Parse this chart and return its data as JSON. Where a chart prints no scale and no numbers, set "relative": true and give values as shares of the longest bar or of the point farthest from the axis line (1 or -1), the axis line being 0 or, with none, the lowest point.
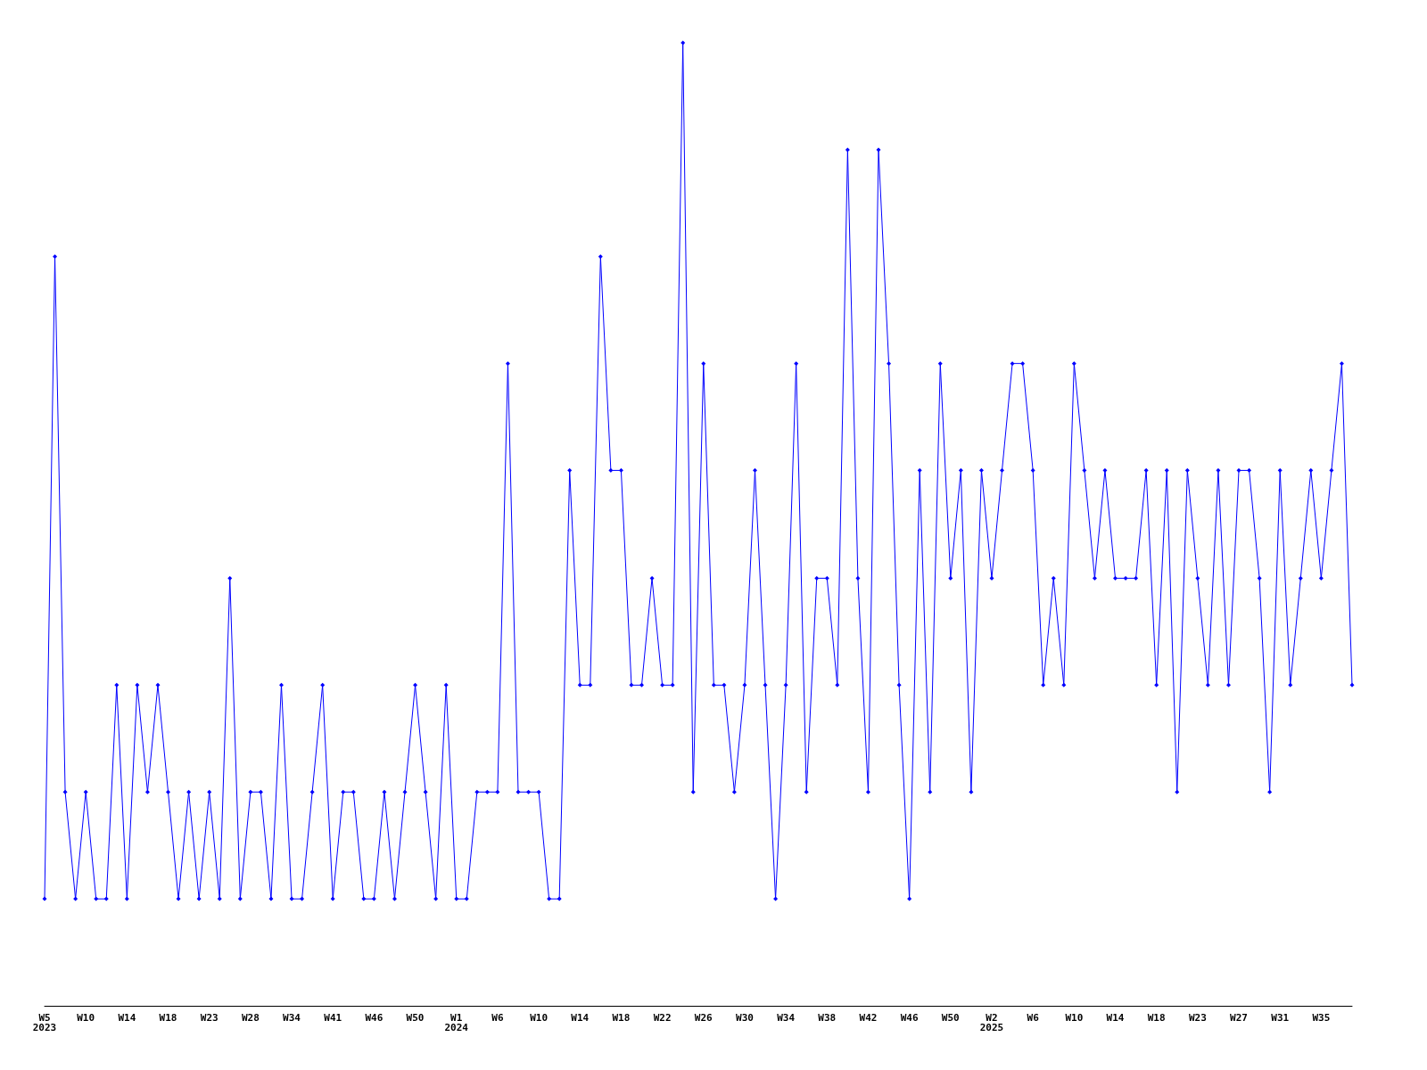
{
  "chart_data": {
    "type": "line",
    "relative": true,
    "marker": "diamond",
    "line_style": "solid",
    "grid": false,
    "categories": [
      "W5\n2023",
      null,
      null,
      null,
      "W10",
      null,
      null,
      null,
      "W14",
      null,
      null,
      null,
      "W18",
      null,
      null,
      null,
      "W23",
      null,
      null,
      null,
      "W28",
      null,
      null,
      null,
      "W34",
      null,
      null,
      null,
      "W41",
      null,
      null,
      null,
      "W46",
      null,
      null,
      null,
      "W50",
      null,
      null,
      null,
      "W1\n2024",
      null,
      null,
      null,
      "W6",
      null,
      null,
      null,
      "W10",
      null,
      null,
      null,
      "W14",
      null,
      null,
      null,
      "W18",
      null,
      null,
      null,
      "W22",
      null,
      null,
      null,
      "W26",
      null,
      null,
      null,
      "W30",
      null,
      null,
      null,
      "W34",
      null,
      null,
      null,
      "W38",
      null,
      null,
      null,
      "W42",
      null,
      null,
      null,
      "W46",
      null,
      null,
      null,
      "W50",
      null,
      null,
      null,
      "W2\n2025",
      null,
      null,
      null,
      "W6",
      null,
      null,
      null,
      "W10",
      null,
      null,
      null,
      "W14",
      null,
      null,
      null,
      "W18",
      null,
      null,
      null,
      "W23",
      null,
      null,
      null,
      "W27",
      null,
      null,
      null,
      "W31",
      null,
      null,
      null,
      "W35",
      null,
      null,
      null
    ],
    "series": [
      {
        "color": "#0000ff",
        "values": [
          0.111,
          0.778,
          0.222,
          0.111,
          0.222,
          0.111,
          0.111,
          0.333,
          0.111,
          0.333,
          0.222,
          0.333,
          0.222,
          0.111,
          0.222,
          0.111,
          0.222,
          0.111,
          0.444,
          0.111,
          0.222,
          0.222,
          0.111,
          0.333,
          0.111,
          0.111,
          0.222,
          0.333,
          0.111,
          0.222,
          0.222,
          0.111,
          0.111,
          0.222,
          0.111,
          0.222,
          0.333,
          0.222,
          0.111,
          0.333,
          0.111,
          0.111,
          0.222,
          0.222,
          0.222,
          0.667,
          0.222,
          0.222,
          0.222,
          0.111,
          0.111,
          0.556,
          0.333,
          0.333,
          0.778,
          0.556,
          0.556,
          0.333,
          0.333,
          0.444,
          0.333,
          0.333,
          1,
          0.222,
          0.667,
          0.333,
          0.333,
          0.222,
          0.333,
          0.556,
          0.333,
          0.111,
          0.333,
          0.667,
          0.222,
          0.444,
          0.444,
          0.333,
          0.889,
          0.444,
          0.222,
          0.889,
          0.667,
          0.333,
          0.111,
          0.556,
          0.222,
          0.667,
          0.444,
          0.556,
          0.222,
          0.556,
          0.444,
          0.556,
          0.667,
          0.667,
          0.556,
          0.333,
          0.444,
          0.333,
          0.667,
          0.556,
          0.444,
          0.556,
          0.444,
          0.444,
          0.444,
          0.556,
          0.333,
          0.556,
          0.222,
          0.556,
          0.444,
          0.333,
          0.556,
          0.333,
          0.556,
          0.556,
          0.444,
          0.222,
          0.556,
          0.333,
          0.444,
          0.556,
          0.444,
          0.556,
          0.667,
          0.333
        ]
      }
    ]
  }
}
